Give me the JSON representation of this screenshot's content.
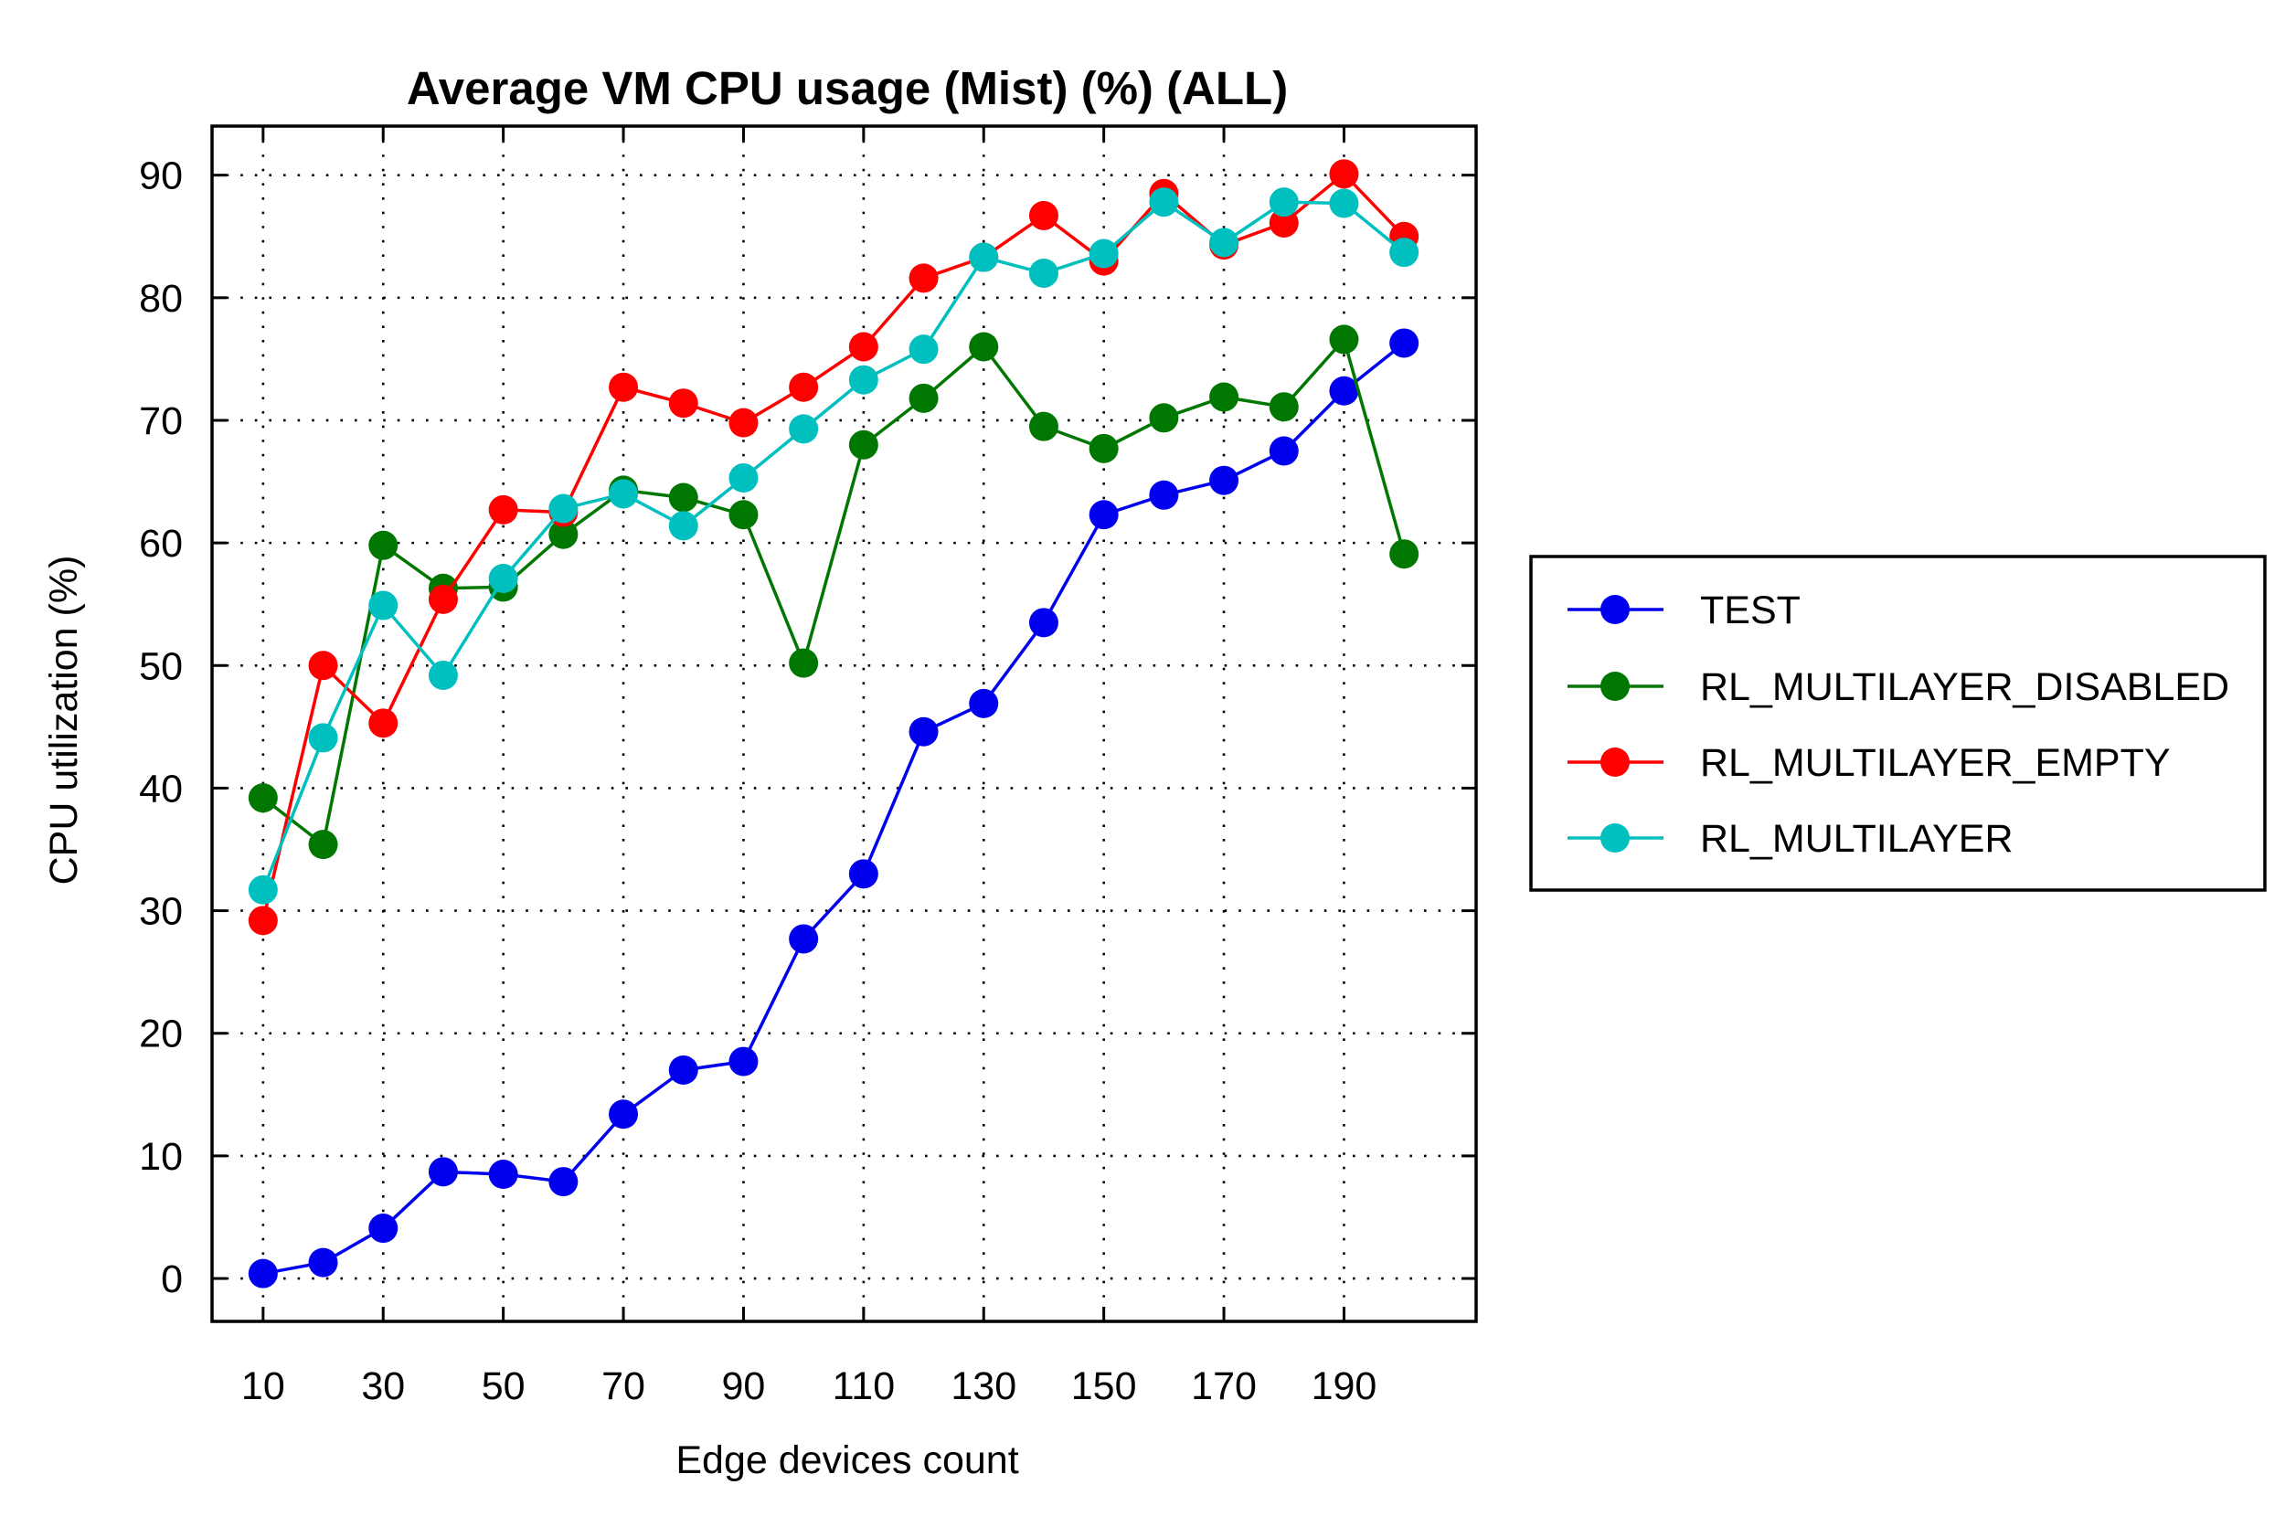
{
  "chart_data": {
    "type": "line",
    "title": "Average VM CPU usage (Mist) (%) (ALL)",
    "xlabel": "Edge devices count",
    "ylabel": "CPU utilization (%)",
    "x": [
      10,
      20,
      30,
      40,
      50,
      60,
      70,
      80,
      90,
      100,
      110,
      120,
      130,
      140,
      150,
      160,
      170,
      180,
      190,
      200
    ],
    "xticks": [
      "10",
      "30",
      "50",
      "70",
      "90",
      "110",
      "130",
      "150",
      "170",
      "190"
    ],
    "yticks": [
      "0",
      "10",
      "20",
      "30",
      "40",
      "50",
      "60",
      "70",
      "80",
      "90"
    ],
    "xlim": [
      1.5,
      212
    ],
    "ylim": [
      -3.5,
      94
    ],
    "grid": true,
    "legend_position": "right",
    "series": [
      {
        "name": "TEST",
        "color": "#0000ee",
        "values": [
          0.4,
          1.3,
          4.1,
          8.7,
          8.5,
          7.9,
          13.4,
          17.0,
          17.7,
          27.7,
          33.0,
          44.6,
          46.9,
          53.5,
          62.3,
          63.9,
          65.1,
          67.5,
          72.4,
          76.3
        ]
      },
      {
        "name": "RL_MULTILAYER_DISABLED",
        "color": "#007700",
        "values": [
          39.2,
          35.4,
          59.8,
          56.3,
          56.4,
          60.7,
          64.3,
          63.7,
          62.3,
          50.2,
          68.0,
          71.8,
          76.0,
          69.5,
          67.7,
          70.2,
          71.9,
          71.1,
          76.6,
          59.1
        ]
      },
      {
        "name": "RL_MULTILAYER_EMPTY",
        "color": "#ff0000",
        "values": [
          29.2,
          50.0,
          45.3,
          55.4,
          62.7,
          62.5,
          72.7,
          71.4,
          69.8,
          72.7,
          76.0,
          81.6,
          83.3,
          86.7,
          83.0,
          88.5,
          84.3,
          86.1,
          90.1,
          85.0
        ]
      },
      {
        "name": "RL_MULTILAYER",
        "color": "#00bfbf",
        "values": [
          31.7,
          44.1,
          54.9,
          49.2,
          57.1,
          62.8,
          64.0,
          61.4,
          65.3,
          69.3,
          73.3,
          75.8,
          83.3,
          82.0,
          83.6,
          87.8,
          84.5,
          87.8,
          87.7,
          83.7
        ]
      }
    ]
  }
}
